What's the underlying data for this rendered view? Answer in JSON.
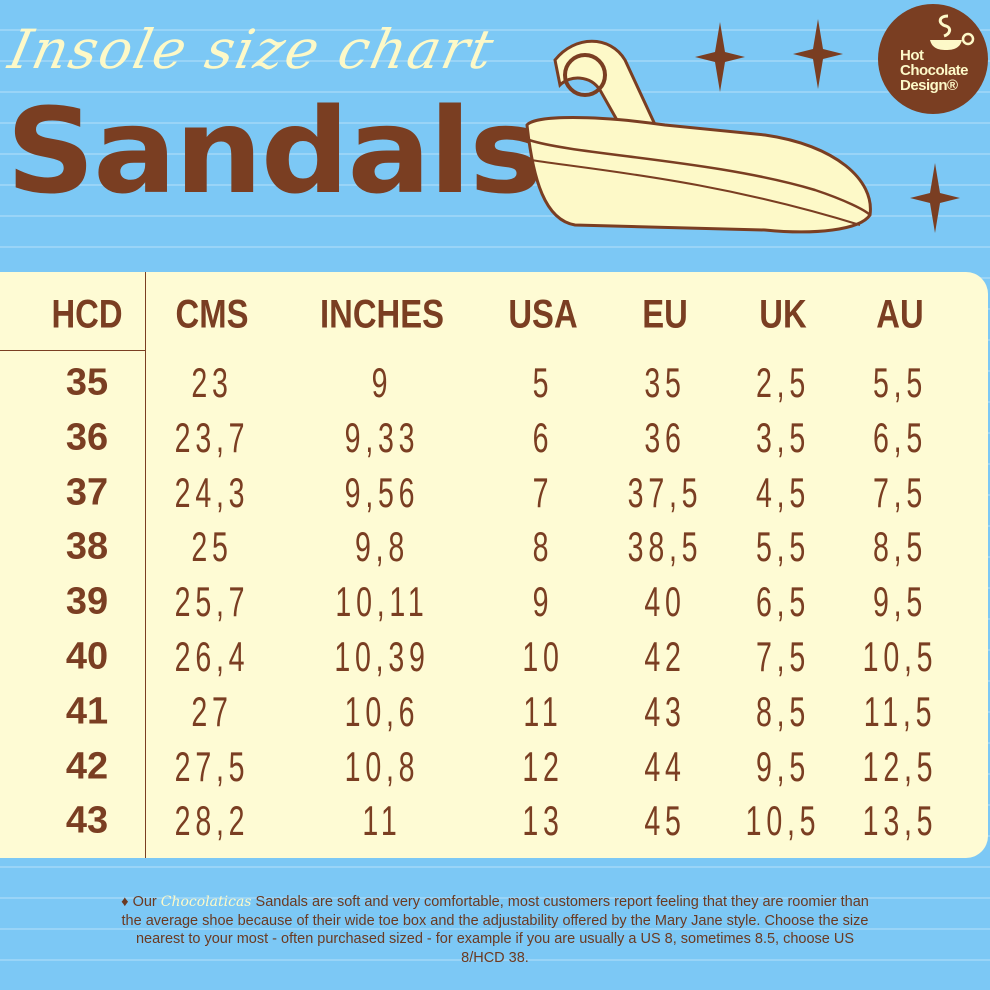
{
  "header": {
    "subtitle": "Insole size chart",
    "title": "Sandals"
  },
  "logo": {
    "text": [
      "Hot",
      "Chocolate",
      "Design®"
    ]
  },
  "colors": {
    "background": "#7cc8f5",
    "brown": "#7a3e22",
    "cream": "#fefbd4"
  },
  "table": {
    "columns": [
      "HCD",
      "CMS",
      "INCHES",
      "USA",
      "EU",
      "UK",
      "AU"
    ],
    "rows": [
      [
        "35",
        "23",
        "9",
        "5",
        "35",
        "2,5",
        "5,5"
      ],
      [
        "36",
        "23,7",
        "9,33",
        "6",
        "36",
        "3,5",
        "6,5"
      ],
      [
        "37",
        "24,3",
        "9,56",
        "7",
        "37,5",
        "4,5",
        "7,5"
      ],
      [
        "38",
        "25",
        "9,8",
        "8",
        "38,5",
        "5,5",
        "8,5"
      ],
      [
        "39",
        "25,7",
        "10,11",
        "9",
        "40",
        "6,5",
        "9,5"
      ],
      [
        "40",
        "26,4",
        "10,39",
        "10",
        "42",
        "7,5",
        "10,5"
      ],
      [
        "41",
        "27",
        "10,6",
        "11",
        "43",
        "8,5",
        "11,5"
      ],
      [
        "42",
        "27,5",
        "10,8",
        "12",
        "44",
        "9,5",
        "12,5"
      ],
      [
        "43",
        "28,2",
        "11",
        "13",
        "45",
        "10,5",
        "13,5"
      ]
    ]
  },
  "footer": {
    "bullet": "♦",
    "prefix": "Our",
    "brand": "Chocolaticas",
    "text": "Sandals are soft and very comfortable, most customers report feeling that they are roomier than the average shoe because of their wide toe box and the adjustability offered by the Mary Jane style. Choose the size nearest to your most - often  purchased sized - for example if you are usually a US 8, sometimes 8.5, choose US 8/HCD 38."
  }
}
